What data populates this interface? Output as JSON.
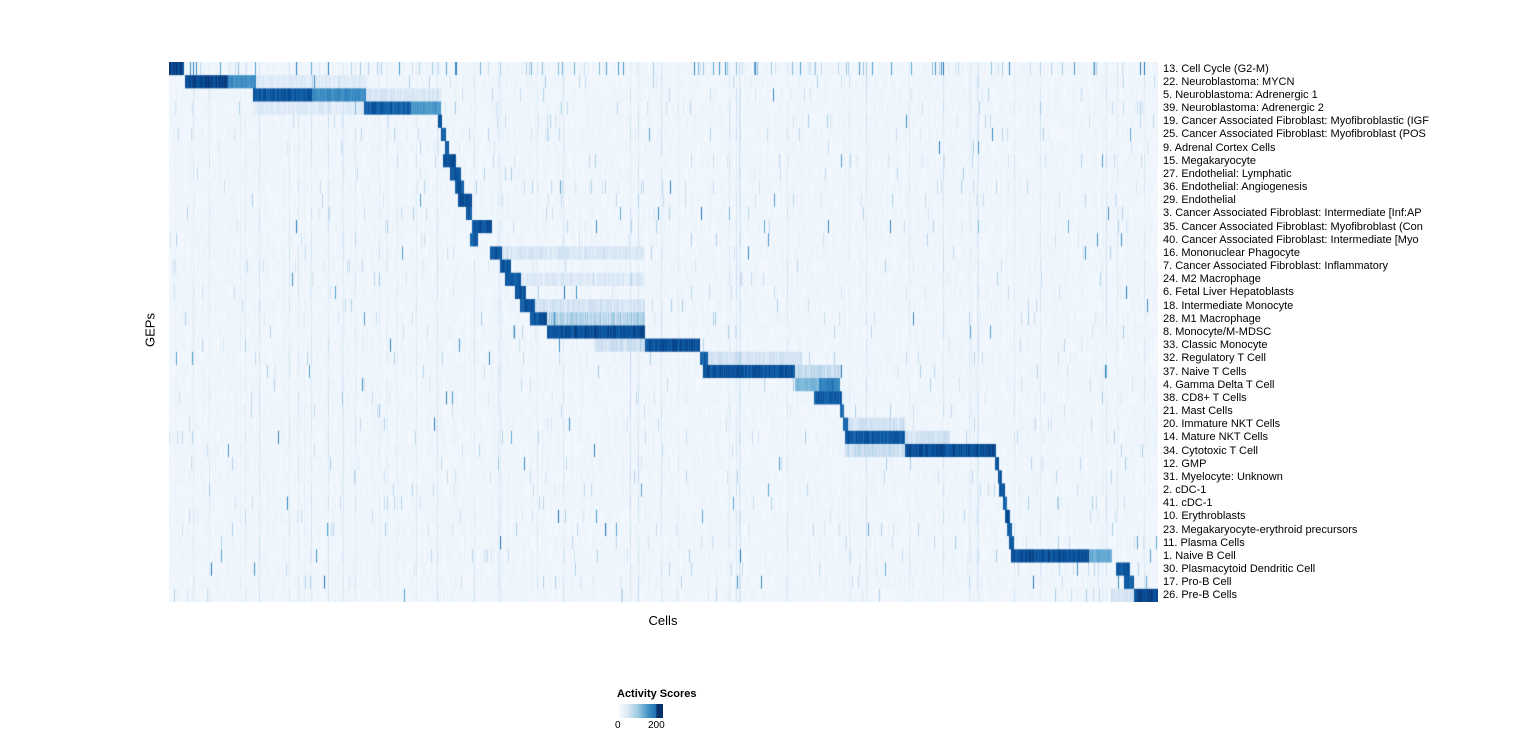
{
  "chart_data": {
    "type": "heatmap",
    "title": "",
    "xlabel": "Cells",
    "ylabel": "GEPs",
    "legend_title": "Activity Scores",
    "legend_min": "0",
    "legend_max": "200",
    "value_range": [
      0,
      200
    ],
    "colormap": "Blues",
    "color_stops": [
      "#f7fbff",
      "#deebf7",
      "#c6dbef",
      "#9ecae1",
      "#6baed6",
      "#4292c6",
      "#2171b5",
      "#08519c",
      "#08306b"
    ],
    "legend_gradient": [
      "#ffffff 0%",
      "#deebf7 22%",
      "#9ecae1 45%",
      "#4292c6 68%",
      "#2171b5 84%",
      "#08306b 87%",
      "#08306b 100%"
    ],
    "description": "Diagonal block heatmap of GEP activity scores per cell; segments are [x_start_fraction, x_end_fraction, intensity_0_to_1] of high-activity cell ranges per GEP row.",
    "rows": [
      {
        "label": "13. Cell Cycle (G2-M)",
        "segments": [
          [
            0.0,
            0.015,
            1.0
          ]
        ],
        "speckle": 0.1
      },
      {
        "label": "22. Neuroblastoma: MYCN",
        "segments": [
          [
            0.016,
            0.06,
            0.98
          ],
          [
            0.06,
            0.088,
            0.7
          ],
          [
            0.088,
            0.2,
            0.12
          ]
        ]
      },
      {
        "label": "5. Neuroblastoma: Adrenergic 1",
        "segments": [
          [
            0.085,
            0.145,
            0.92
          ],
          [
            0.145,
            0.199,
            0.7
          ],
          [
            0.199,
            0.275,
            0.15
          ]
        ]
      },
      {
        "label": "39. Neuroblastoma: Adrenergic 2",
        "segments": [
          [
            0.085,
            0.197,
            0.12
          ],
          [
            0.197,
            0.245,
            0.88
          ],
          [
            0.245,
            0.275,
            0.65
          ]
        ]
      },
      {
        "label": "19. Cancer Associated Fibroblast: Myofibroblastic (IGF",
        "segments": [
          [
            0.2715,
            0.2765,
            0.9
          ]
        ]
      },
      {
        "label": "25. Cancer Associated Fibroblast: Myofibroblast (POS",
        "segments": [
          [
            0.2755,
            0.2805,
            0.9
          ]
        ]
      },
      {
        "label": "9. Adrenal Cortex Cells",
        "segments": [
          [
            0.279,
            0.2835,
            0.9
          ]
        ]
      },
      {
        "label": "15. Megakaryocyte",
        "segments": [
          [
            0.277,
            0.2905,
            0.95
          ]
        ]
      },
      {
        "label": "27. Endothelial: Lymphatic",
        "segments": [
          [
            0.284,
            0.2955,
            0.92
          ]
        ]
      },
      {
        "label": "36. Endothelial: Angiogenesis",
        "segments": [
          [
            0.289,
            0.2985,
            0.92
          ]
        ]
      },
      {
        "label": "29. Endothelial",
        "segments": [
          [
            0.2925,
            0.3065,
            0.93
          ]
        ]
      },
      {
        "label": "3. Cancer Associated Fibroblast: Intermediate [Inf:AP",
        "segments": [
          [
            0.3,
            0.3065,
            0.9
          ]
        ]
      },
      {
        "label": "35. Cancer Associated Fibroblast: Myofibroblast (Con",
        "segments": [
          [
            0.3065,
            0.327,
            0.95
          ]
        ]
      },
      {
        "label": "40. Cancer Associated Fibroblast: Intermediate [Myo",
        "segments": [
          [
            0.304,
            0.3125,
            0.9
          ]
        ]
      },
      {
        "label": "16. Mononuclear Phagocyte",
        "segments": [
          [
            0.325,
            0.3365,
            0.92
          ],
          [
            0.3365,
            0.48,
            0.15
          ]
        ]
      },
      {
        "label": "7. Cancer Associated Fibroblast: Inflammatory",
        "segments": [
          [
            0.3345,
            0.3455,
            0.92
          ]
        ]
      },
      {
        "label": "24. M2 Macrophage",
        "segments": [
          [
            0.34,
            0.356,
            0.92
          ],
          [
            0.356,
            0.48,
            0.13
          ]
        ]
      },
      {
        "label": "6. Fetal Liver Hepatoblasts",
        "segments": [
          [
            0.35,
            0.3605,
            0.92
          ]
        ]
      },
      {
        "label": "18. Intermediate Monocyte",
        "segments": [
          [
            0.3545,
            0.3705,
            0.92
          ],
          [
            0.3705,
            0.48,
            0.17
          ]
        ]
      },
      {
        "label": "28. M1 Macrophage",
        "segments": [
          [
            0.3655,
            0.3825,
            0.92
          ],
          [
            0.3825,
            0.481,
            0.3
          ]
        ]
      },
      {
        "label": "8. Monocyte/M-MDSC",
        "segments": [
          [
            0.3825,
            0.481,
            0.95
          ]
        ]
      },
      {
        "label": "33. Classic Monocyte",
        "segments": [
          [
            0.43,
            0.481,
            0.2
          ],
          [
            0.481,
            0.537,
            0.95
          ]
        ]
      },
      {
        "label": "32. Regulatory T Cell",
        "segments": [
          [
            0.537,
            0.5455,
            0.88
          ],
          [
            0.5455,
            0.64,
            0.18
          ]
        ]
      },
      {
        "label": "37. Naive T Cells",
        "segments": [
          [
            0.54,
            0.633,
            0.93
          ],
          [
            0.633,
            0.68,
            0.25
          ]
        ]
      },
      {
        "label": "4. Gamma Delta T Cell",
        "segments": [
          [
            0.633,
            0.657,
            0.5
          ],
          [
            0.657,
            0.678,
            0.75
          ]
        ]
      },
      {
        "label": "38. CD8+ T Cells",
        "segments": [
          [
            0.652,
            0.6805,
            0.9
          ]
        ]
      },
      {
        "label": "21. Mast Cells",
        "segments": [
          [
            0.6785,
            0.683,
            0.85
          ]
        ]
      },
      {
        "label": "20. Immature NKT Cells",
        "segments": [
          [
            0.682,
            0.687,
            0.85
          ],
          [
            0.687,
            0.744,
            0.18
          ]
        ]
      },
      {
        "label": "14. Mature NKT Cells",
        "segments": [
          [
            0.684,
            0.744,
            0.9
          ],
          [
            0.744,
            0.79,
            0.18
          ]
        ]
      },
      {
        "label": "34. Cytotoxic T Cell",
        "segments": [
          [
            0.684,
            0.744,
            0.22
          ],
          [
            0.744,
            0.836,
            0.95
          ]
        ]
      },
      {
        "label": "12. GMP",
        "segments": [
          [
            0.8355,
            0.8395,
            0.9
          ]
        ]
      },
      {
        "label": "31. Myelocyte: Unknown",
        "segments": [
          [
            0.838,
            0.842,
            0.9
          ]
        ]
      },
      {
        "label": "2. cDC-1",
        "segments": [
          [
            0.8395,
            0.8455,
            0.9
          ]
        ]
      },
      {
        "label": "41. cDC-1",
        "segments": [
          [
            0.843,
            0.847,
            0.9
          ]
        ]
      },
      {
        "label": "10. Erythroblasts",
        "segments": [
          [
            0.845,
            0.85,
            0.95
          ]
        ]
      },
      {
        "label": "23. Megakaryocyte-erythroid precursors",
        "segments": [
          [
            0.847,
            0.852,
            0.9
          ]
        ]
      },
      {
        "label": "11. Plasma Cells",
        "segments": [
          [
            0.8495,
            0.854,
            0.9
          ]
        ]
      },
      {
        "label": "1. Naive B Cell",
        "segments": [
          [
            0.851,
            0.93,
            0.95
          ],
          [
            0.93,
            0.953,
            0.55
          ]
        ]
      },
      {
        "label": "30. Plasmacytoid Dendritic Cell",
        "segments": [
          [
            0.958,
            0.972,
            0.9
          ]
        ]
      },
      {
        "label": "17. Pro-B Cell",
        "segments": [
          [
            0.9655,
            0.976,
            0.88
          ]
        ]
      },
      {
        "label": "26. Pre-B Cells",
        "segments": [
          [
            0.952,
            0.976,
            0.18
          ],
          [
            0.976,
            1.0,
            0.98
          ]
        ]
      }
    ]
  }
}
